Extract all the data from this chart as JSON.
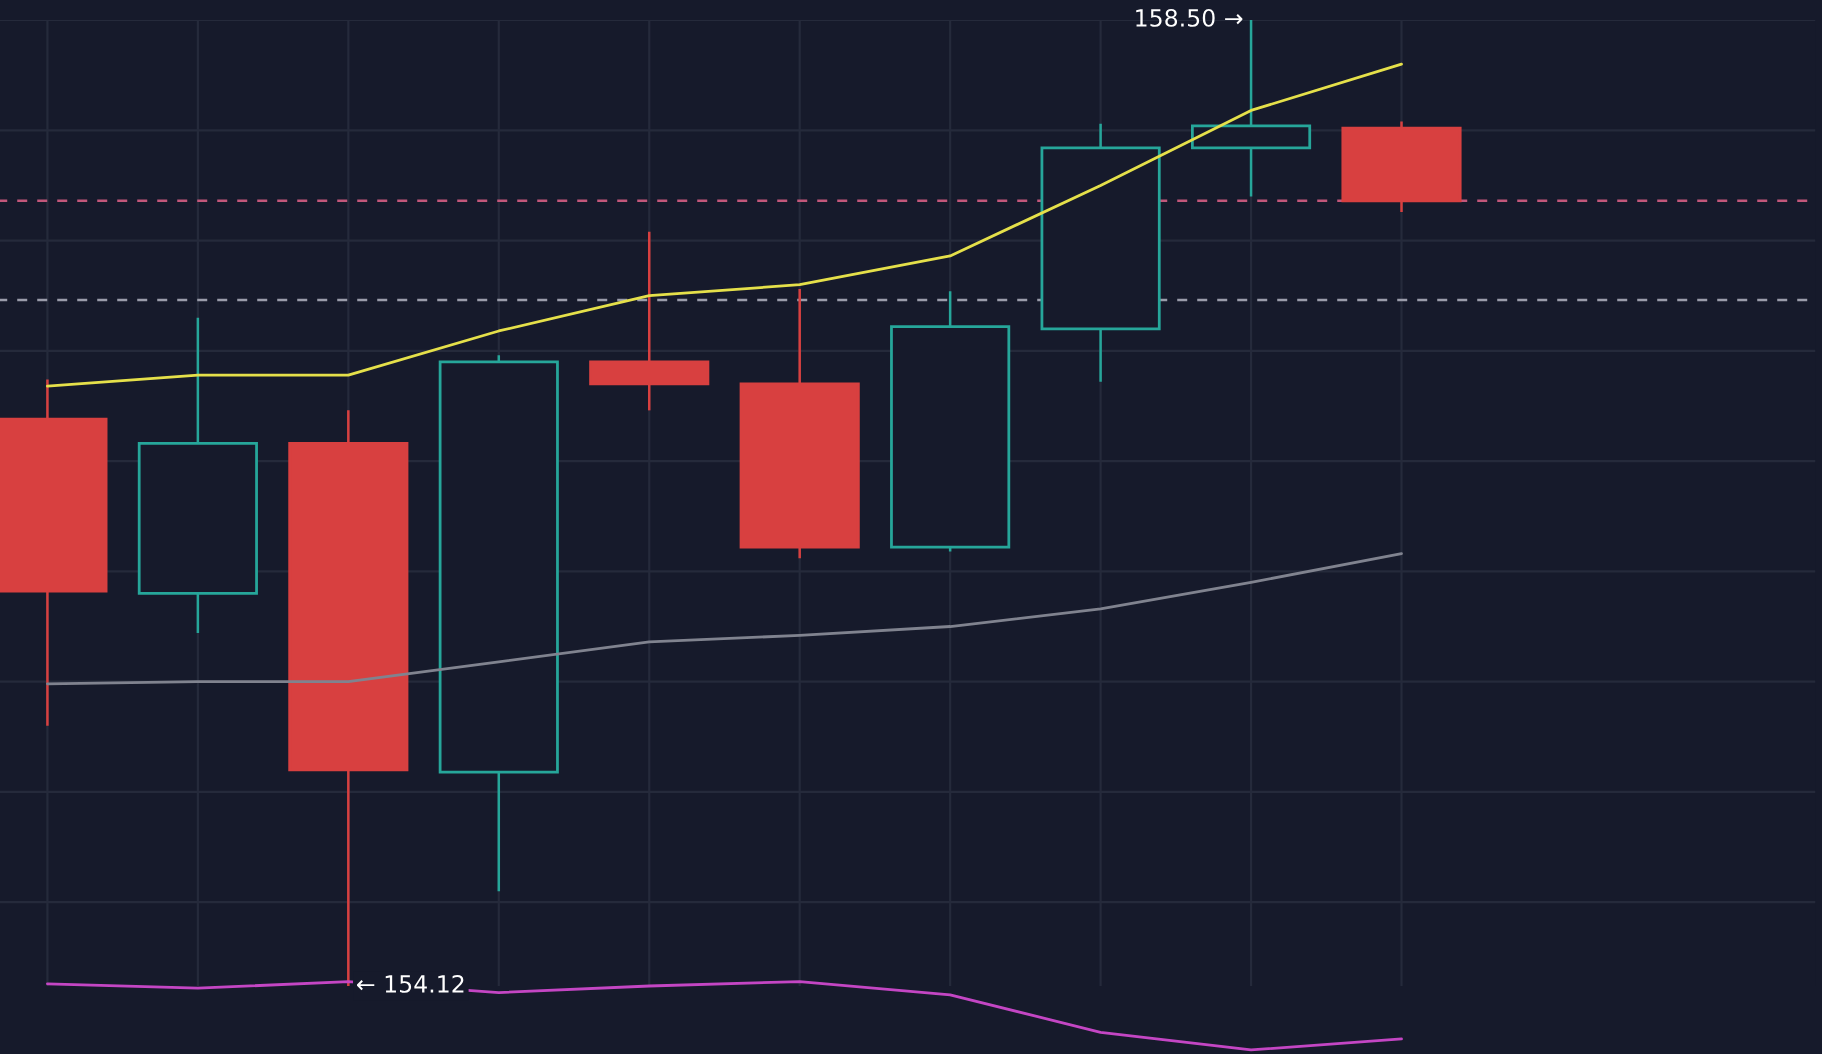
{
  "chart_data": {
    "type": "candlestick",
    "categories": [
      null,
      null,
      null,
      null,
      null,
      null,
      null,
      null,
      null,
      null
    ],
    "ohlc": [
      [
        156.69,
        156.87,
        155.3,
        155.91
      ],
      [
        155.9,
        157.15,
        155.72,
        156.58
      ],
      [
        156.58,
        156.73,
        154.12,
        155.1
      ],
      [
        155.09,
        156.98,
        154.55,
        156.95
      ],
      [
        156.95,
        157.54,
        156.73,
        156.85
      ],
      [
        156.85,
        157.28,
        156.06,
        156.11
      ],
      [
        156.11,
        157.27,
        156.09,
        157.11
      ],
      [
        157.1,
        158.03,
        156.86,
        157.92
      ],
      [
        157.92,
        158.5,
        157.7,
        158.02
      ],
      [
        158.01,
        158.04,
        157.63,
        157.68
      ]
    ],
    "colors": [
      "#d84040",
      "#26a69a",
      "#d84040",
      "#26a69a",
      "#d84040",
      "#d84040",
      "#26a69a",
      "#26a69a",
      "#26a69a",
      "#d84040"
    ],
    "series": [
      {
        "type": "line",
        "color": "#e5e04a",
        "values": [
          156.84,
          156.89,
          156.89,
          157.09,
          157.25,
          157.3,
          157.43,
          157.75,
          158.09,
          158.3
        ]
      },
      {
        "type": "line",
        "color": "#80838f",
        "values": [
          155.49,
          155.5,
          155.5,
          155.59,
          155.68,
          155.71,
          155.75,
          155.83,
          155.95,
          156.08
        ]
      },
      {
        "type": "line",
        "color": "#c446c4",
        "values": [
          154.13,
          154.11,
          154.14,
          154.09,
          154.12,
          154.14,
          154.08,
          153.91,
          153.83,
          153.88
        ]
      }
    ],
    "ref_lines": [
      {
        "axis": "y",
        "value": 157.68,
        "color": "#c2577a",
        "line_style": "dashed"
      },
      {
        "axis": "y",
        "value": 157.23,
        "color": "#9a9caa",
        "line_style": "dashed"
      }
    ],
    "annotations": [
      "158.50 →",
      "← 154.12"
    ],
    "grid": true
  }
}
